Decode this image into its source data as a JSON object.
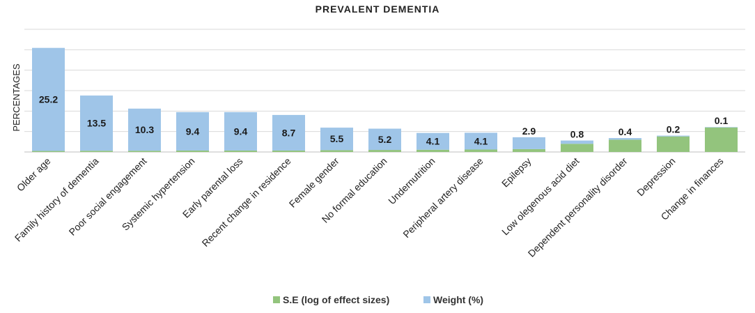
{
  "chart_data": {
    "type": "bar",
    "stacked": true,
    "title": "PREVALENT DEMENTIA",
    "ylabel": "PERCENTAGES",
    "xlabel": "",
    "ylim": [
      0,
      30
    ],
    "grid": true,
    "legend": "bottom-center",
    "categories": [
      "Older age",
      "Family history of dementia",
      "Poor social engagement",
      "Systemic hypertension",
      "Early parental loss",
      "Recent change in residence",
      "Female gender",
      "No formal education",
      "Undernutrition",
      "Peripheral artery disease",
      "Epilepsy",
      "Low olegenous acid diet",
      "Dependent personality disorder",
      "Depression",
      "Change in finances"
    ],
    "series": [
      {
        "name": "S.E (log of effect sizes)",
        "color": "#93c47d",
        "values": [
          0.25,
          0.3,
          0.3,
          0.35,
          0.35,
          0.35,
          0.45,
          0.5,
          0.55,
          0.6,
          0.7,
          2.0,
          3.0,
          3.8,
          6.0
        ]
      },
      {
        "name": "Weight (%)",
        "color": "#9fc5e8",
        "values": [
          25.2,
          13.5,
          10.3,
          9.4,
          9.4,
          8.7,
          5.5,
          5.2,
          4.1,
          4.1,
          2.9,
          0.8,
          0.4,
          0.2,
          0.1
        ]
      }
    ],
    "data_labels": [
      "25.2",
      "13.5",
      "10.3",
      "9.4",
      "9.4",
      "8.7",
      "5.5",
      "5.2",
      "4.1",
      "4.1",
      "2.9",
      "0.8",
      "0.4",
      "0.2",
      "0.1"
    ]
  }
}
